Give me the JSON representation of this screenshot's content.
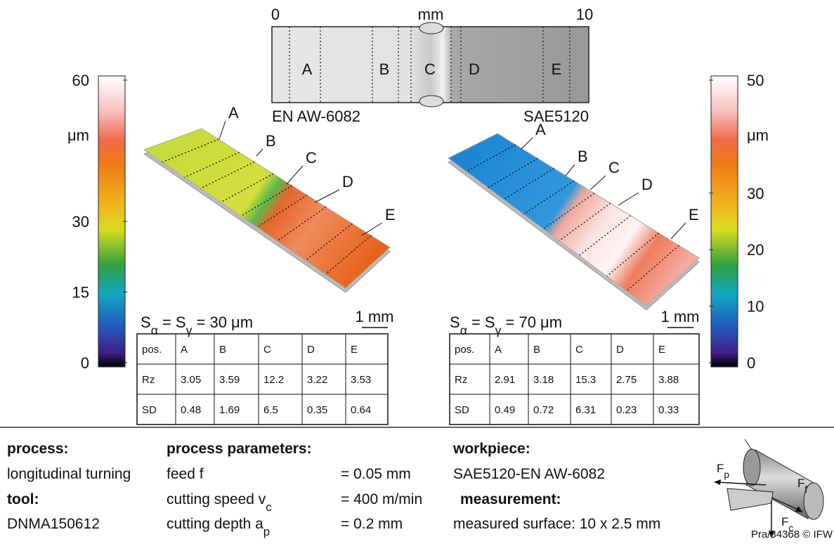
{
  "strip": {
    "xlim": [
      0,
      10
    ],
    "unit": "mm",
    "zones": [
      "A",
      "B",
      "C",
      "D",
      "E"
    ],
    "left_material": "EN AW-6082",
    "right_material": "SAE5120"
  },
  "colorbars": [
    {
      "lim": [
        0,
        60
      ],
      "ticks": [
        60,
        30,
        15,
        0
      ],
      "unit": "μm"
    },
    {
      "lim": [
        0,
        50
      ],
      "ticks": [
        50,
        30,
        20,
        10,
        0
      ],
      "unit": "μm"
    }
  ],
  "surfaces": [
    {
      "labels": [
        "A",
        "B",
        "C",
        "D",
        "E"
      ],
      "formula": [
        {
          "text": "S",
          "sub": "α"
        },
        {
          "text": " = S",
          "sub": "γ"
        },
        {
          "text": " = 30 μm"
        }
      ],
      "scale": "1 mm",
      "table": {
        "header": [
          "pos.",
          "A",
          "B",
          "C",
          "D",
          "E"
        ],
        "rows": [
          [
            "Rz",
            3.05,
            3.59,
            12.2,
            3.22,
            3.53
          ],
          [
            "SD",
            0.48,
            1.69,
            6.5,
            0.35,
            0.64
          ]
        ]
      }
    },
    {
      "labels": [
        "A",
        "B",
        "C",
        "D",
        "E"
      ],
      "formula": [
        {
          "text": "S",
          "sub": "α"
        },
        {
          "text": " = S",
          "sub": "γ"
        },
        {
          "text": " = 70 μm"
        }
      ],
      "scale": "1 mm",
      "table": {
        "header": [
          "pos.",
          "A",
          "B",
          "C",
          "D",
          "E"
        ],
        "rows": [
          [
            "Rz",
            2.91,
            3.18,
            15.3,
            2.75,
            3.88
          ],
          [
            "SD",
            0.49,
            0.72,
            6.31,
            0.23,
            0.33
          ]
        ]
      }
    }
  ],
  "info": {
    "process": {
      "heading": "process:",
      "value": "longitudinal turning"
    },
    "tool": {
      "heading": "tool:",
      "value": "DNMA150612"
    },
    "parameters": {
      "heading": "process parameters:",
      "items": [
        {
          "name": {
            "text": "feed f"
          },
          "value": "= 0.05 mm"
        },
        {
          "name": {
            "text": "cutting speed v",
            "sub": "c"
          },
          "value": "= 400 m/min"
        },
        {
          "name": {
            "text": "cutting depth a",
            "sub": "p"
          },
          "value": "= 0.2 mm"
        }
      ]
    },
    "workpiece": {
      "heading": "workpiece:",
      "value": "SAE5120-EN AW-6082"
    },
    "measurement": {
      "heading": "measurement:",
      "value": "measured surface: 10 x 2.5 mm"
    },
    "forces": [
      {
        "text": "F",
        "sub": "p"
      },
      {
        "text": "F",
        "sub": "f"
      },
      {
        "text": "F",
        "sub": "c"
      }
    ],
    "credit": "Pra/84368 © IFW"
  }
}
